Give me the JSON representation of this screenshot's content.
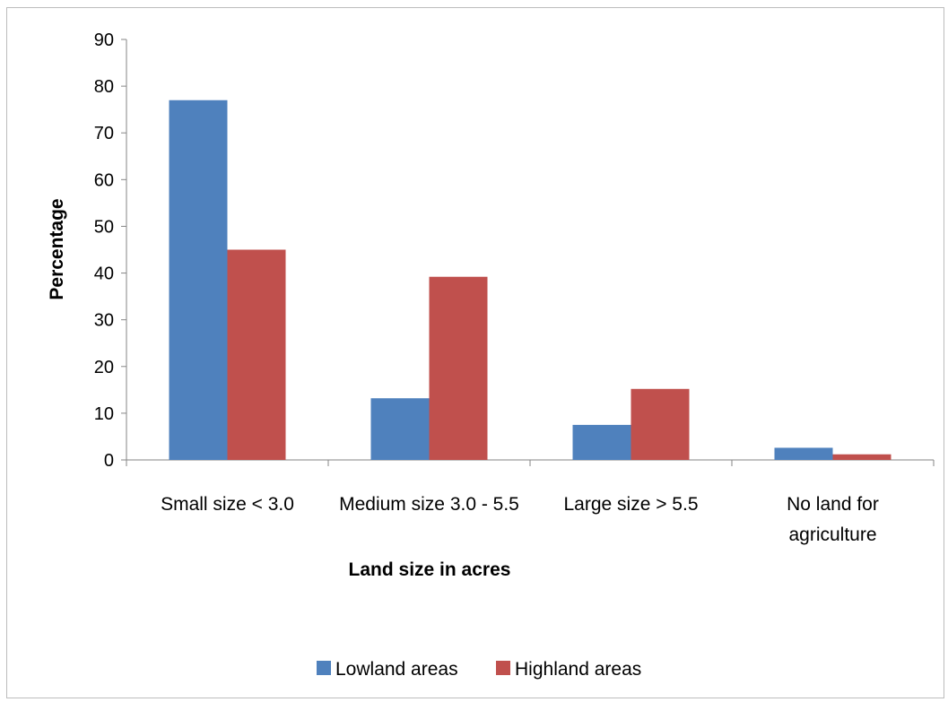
{
  "chart_data": {
    "type": "bar",
    "title": "",
    "xlabel": "Land size in acres",
    "ylabel": "Percentage",
    "ylim": [
      0,
      90
    ],
    "yticks": [
      0,
      10,
      20,
      30,
      40,
      50,
      60,
      70,
      80,
      90
    ],
    "categories": [
      [
        "Small size < 3.0"
      ],
      [
        "Medium size 3.0 - 5.5"
      ],
      [
        "Large size > 5.5"
      ],
      [
        "No land for",
        "agriculture"
      ]
    ],
    "series": [
      {
        "name": "Lowland areas",
        "values": [
          77,
          13.2,
          7.5,
          2.6
        ],
        "color": "#4f81bd"
      },
      {
        "name": "Highland areas",
        "values": [
          45,
          39.2,
          15.2,
          1.2
        ],
        "color": "#c0504d"
      }
    ],
    "grid": false,
    "legend_position": "bottom"
  }
}
